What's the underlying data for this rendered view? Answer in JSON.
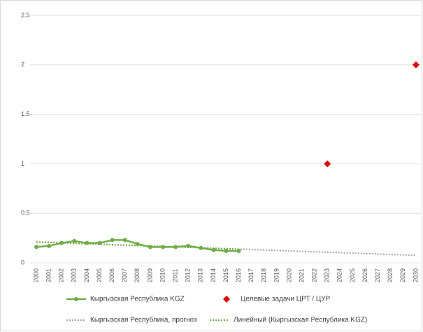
{
  "chart_data": {
    "type": "line",
    "categories": [
      "2000",
      "2001",
      "2002",
      "2003",
      "2004",
      "2005",
      "2006",
      "2007",
      "2008",
      "2009",
      "2010",
      "2011",
      "2012",
      "2013",
      "2014",
      "2015",
      "2016",
      "2017",
      "2018",
      "2019",
      "2020",
      "2021",
      "2022",
      "2023",
      "2024",
      "2025",
      "2026",
      "2027",
      "2028",
      "2029",
      "2030"
    ],
    "ylim": [
      0,
      2.5
    ],
    "yticks": [
      0,
      0.5,
      1,
      1.5,
      2,
      2.5
    ],
    "grid": true,
    "series": [
      {
        "name": "Кыргызская Республика KGZ",
        "color": "#70ad47",
        "marker": "circle",
        "dash": false,
        "values": [
          0.16,
          0.17,
          0.2,
          0.22,
          0.2,
          0.2,
          0.23,
          0.23,
          0.19,
          0.16,
          0.16,
          0.16,
          0.17,
          0.15,
          0.13,
          0.12,
          0.12,
          null,
          null,
          null,
          null,
          null,
          null,
          null,
          null,
          null,
          null,
          null,
          null,
          null,
          null
        ]
      },
      {
        "name": "Целевые задачи ЦРТ / ЦУР",
        "color": "#e00000",
        "marker": "diamond",
        "dash": null,
        "values": [
          null,
          null,
          null,
          null,
          null,
          null,
          null,
          null,
          null,
          null,
          null,
          null,
          null,
          null,
          null,
          null,
          null,
          null,
          null,
          null,
          null,
          null,
          null,
          1,
          null,
          null,
          null,
          null,
          null,
          null,
          2
        ]
      },
      {
        "name": "Кыргызская Республика, прогноз",
        "color": "#a5a5a5",
        "marker": null,
        "dash": true,
        "values": [
          0.21,
          0.206,
          0.201,
          0.197,
          0.192,
          0.188,
          0.183,
          0.179,
          0.174,
          0.17,
          0.165,
          0.161,
          0.156,
          0.152,
          0.147,
          0.143,
          0.138,
          0.134,
          0.129,
          0.125,
          0.12,
          0.116,
          0.111,
          0.107,
          0.102,
          0.098,
          0.093,
          0.089,
          0.084,
          0.08,
          0.075
        ]
      },
      {
        "name": "Линейный (Кыргызская Республика KGZ)",
        "color": "#70ad47",
        "marker": null,
        "dash": true,
        "values": [
          0.21,
          0.206,
          0.201,
          0.197,
          0.192,
          0.188,
          0.183,
          0.179,
          0.174,
          0.17,
          0.165,
          0.161,
          0.156,
          0.152,
          0.147,
          0.143,
          0.138,
          null,
          null,
          null,
          null,
          null,
          null,
          null,
          null,
          null,
          null,
          null,
          null,
          null,
          null
        ]
      }
    ]
  }
}
